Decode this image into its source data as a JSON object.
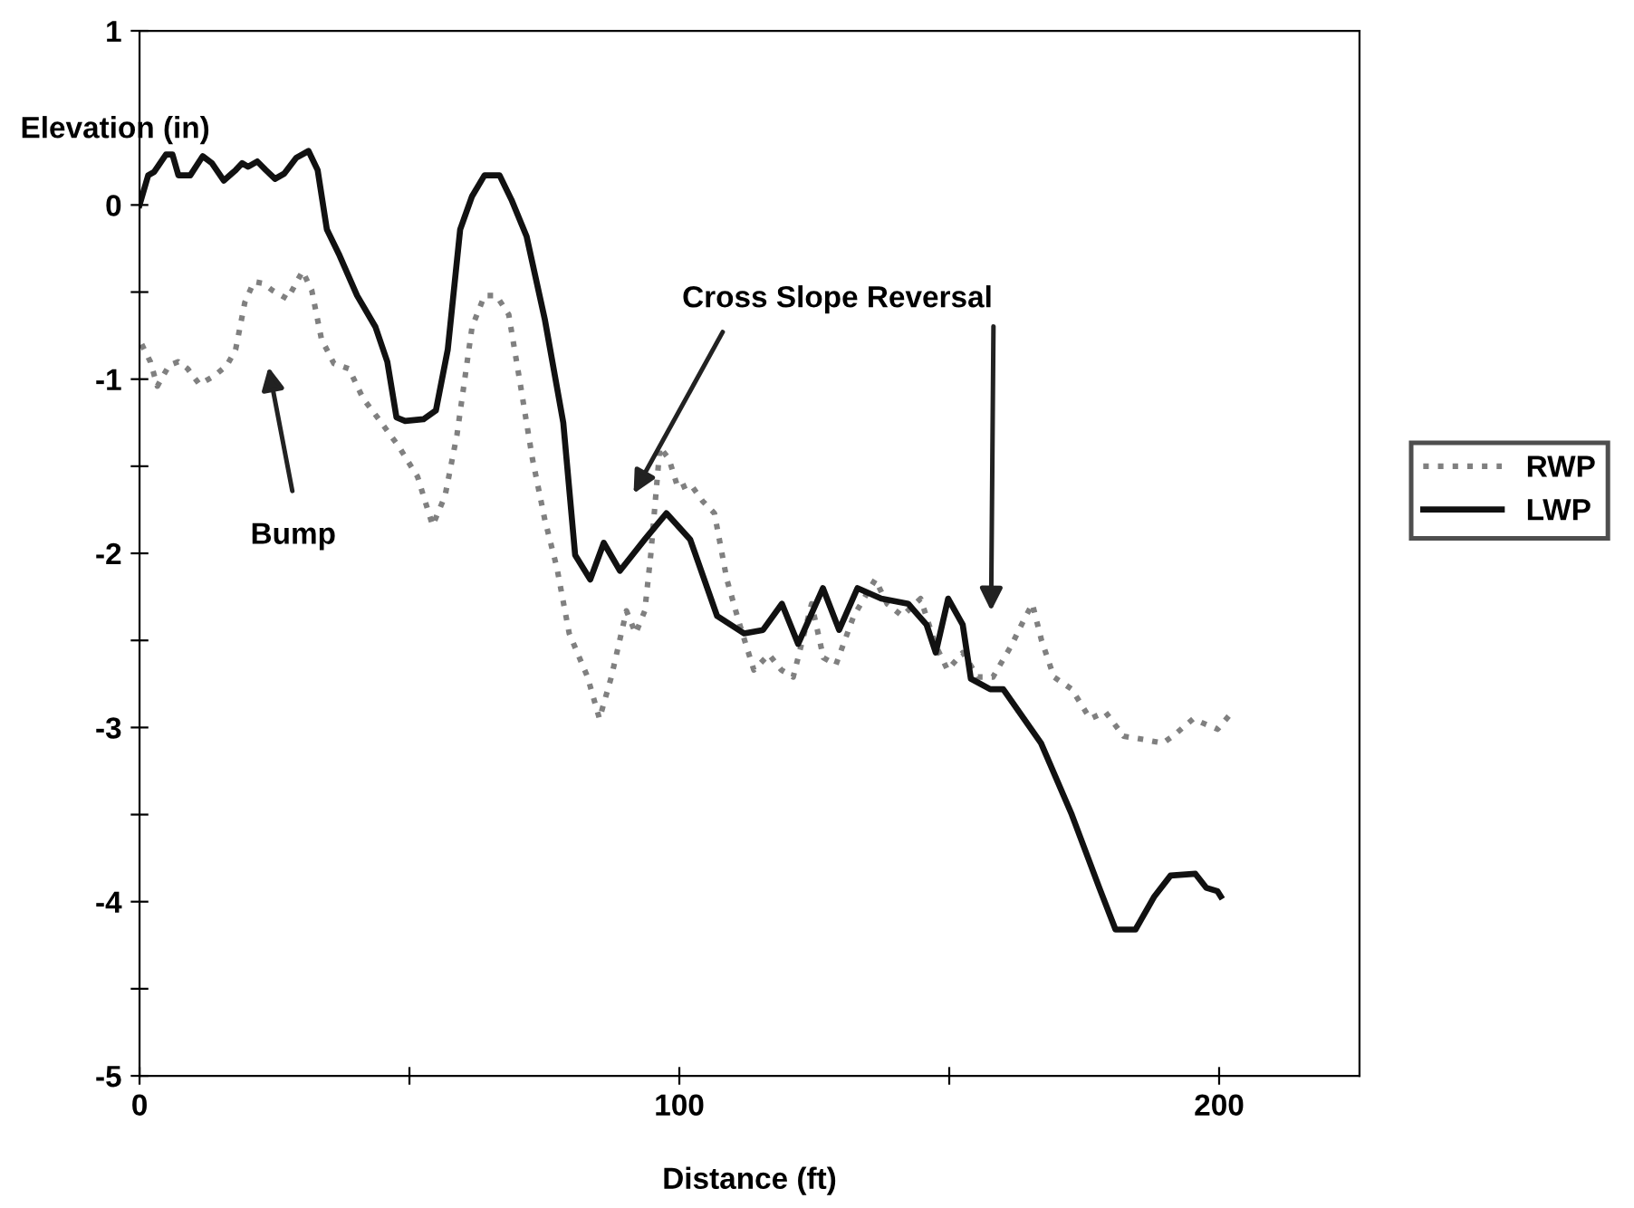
{
  "chart_data": {
    "type": "line",
    "xlabel": "Distance (ft)",
    "ylabel": "Elevation (in)",
    "xlim": [
      0,
      226
    ],
    "ylim": [
      -5,
      1
    ],
    "xticks": [
      0,
      {
        "value": 50,
        "label": null
      },
      100,
      {
        "value": 150,
        "label": null
      },
      200
    ],
    "yticks": [
      -5,
      {
        "value": -4.5,
        "label": null
      },
      -4,
      {
        "value": -3.5,
        "label": null
      },
      -3,
      {
        "value": -2.5,
        "label": null
      },
      -2,
      {
        "value": -1.5,
        "label": null
      },
      -1,
      {
        "value": -0.5,
        "label": null
      },
      0,
      {
        "value": 0.5,
        "label": null
      },
      1
    ],
    "grid": false,
    "legend": "right",
    "marker": "none",
    "series": [
      {
        "name": "RWP",
        "color": "#808080",
        "line_style": "dotted",
        "x": [
          0.4,
          2,
          3.3,
          5.5,
          7.2,
          8.9,
          11.1,
          13.9,
          16.2,
          17.8,
          19.5,
          21.2,
          22.9,
          24.6,
          27.4,
          30.2,
          31.9,
          33.7,
          36,
          38.8,
          41.4,
          44.8,
          48.1,
          51.5,
          54.3,
          56.6,
          58.8,
          61.6,
          63.9,
          66.1,
          68.4,
          70.6,
          72.8,
          75.1,
          77.3,
          79.6,
          83,
          85.2,
          87.4,
          90.2,
          91.9,
          93.6,
          94.7,
          96.4,
          98.1,
          99.8,
          102,
          104.3,
          106.5,
          108.8,
          111,
          113.8,
          116.6,
          118.9,
          121.1,
          124.5,
          126.7,
          129,
          132.3,
          136.3,
          138.5,
          141.3,
          144.7,
          147.5,
          149.7,
          152.5,
          155.3,
          158.1,
          161.5,
          163.7,
          165.4,
          167.1,
          169.4,
          172.7,
          176.1,
          178.9,
          182.3,
          186.2,
          189.6,
          191.8,
          195.2,
          197.4,
          199.7,
          201.9
        ],
        "values": [
          -0.8,
          -0.9,
          -1.04,
          -0.92,
          -0.9,
          -0.94,
          -1.03,
          -0.98,
          -0.92,
          -0.83,
          -0.56,
          -0.44,
          -0.45,
          -0.49,
          -0.54,
          -0.38,
          -0.49,
          -0.77,
          -0.91,
          -0.94,
          -1.11,
          -1.25,
          -1.39,
          -1.56,
          -1.84,
          -1.67,
          -1.32,
          -0.7,
          -0.52,
          -0.52,
          -0.63,
          -1.04,
          -1.46,
          -1.81,
          -2.08,
          -2.46,
          -2.71,
          -2.95,
          -2.71,
          -2.33,
          -2.46,
          -2.33,
          -2.01,
          -1.39,
          -1.46,
          -1.63,
          -1.6,
          -1.7,
          -1.77,
          -2.15,
          -2.39,
          -2.67,
          -2.58,
          -2.67,
          -2.71,
          -2.29,
          -2.6,
          -2.64,
          -2.36,
          -2.15,
          -2.29,
          -2.36,
          -2.26,
          -2.53,
          -2.67,
          -2.57,
          -2.71,
          -2.71,
          -2.53,
          -2.39,
          -2.29,
          -2.5,
          -2.71,
          -2.78,
          -2.95,
          -2.91,
          -3.05,
          -3.07,
          -3.09,
          -3.04,
          -2.95,
          -2.98,
          -3.01,
          -2.93
        ]
      },
      {
        "name": "LWP",
        "color": "#111111",
        "line_style": "solid",
        "x": [
          0,
          1.6,
          2.7,
          4.9,
          6.1,
          7.2,
          9.4,
          11.7,
          13.4,
          15.6,
          17.8,
          19,
          20.1,
          21.8,
          23.4,
          25.1,
          26.8,
          29,
          31.3,
          33,
          34.7,
          36.9,
          40.3,
          43.7,
          45.9,
          47.6,
          49.2,
          52.6,
          54.9,
          57.1,
          59.4,
          61.6,
          63.9,
          66.7,
          68.9,
          71.7,
          75.1,
          78.5,
          80.7,
          83.5,
          86,
          89,
          93.6,
          97.6,
          102,
          107,
          112,
          115.5,
          119,
          122,
          126.6,
          129.6,
          133,
          137.4,
          142.4,
          145.8,
          147.5,
          149.8,
          152.5,
          154,
          157.6,
          160,
          167,
          172.7,
          177.8,
          180.8,
          184.5,
          188,
          191,
          195.6,
          197.6,
          199.7,
          200.3
        ],
        "values": [
          0,
          0.17,
          0.19,
          0.29,
          0.29,
          0.17,
          0.17,
          0.28,
          0.24,
          0.14,
          0.2,
          0.24,
          0.22,
          0.25,
          0.2,
          0.15,
          0.18,
          0.27,
          0.31,
          0.2,
          -0.14,
          -0.28,
          -0.52,
          -0.7,
          -0.9,
          -1.22,
          -1.24,
          -1.23,
          -1.18,
          -0.83,
          -0.14,
          0.05,
          0.17,
          0.17,
          0.03,
          -0.18,
          -0.66,
          -1.25,
          -2.01,
          -2.15,
          -1.94,
          -2.1,
          -1.92,
          -1.77,
          -1.92,
          -2.36,
          -2.46,
          -2.44,
          -2.29,
          -2.52,
          -2.2,
          -2.44,
          -2.2,
          -2.26,
          -2.29,
          -2.41,
          -2.57,
          -2.26,
          -2.41,
          -2.72,
          -2.78,
          -2.78,
          -3.09,
          -3.5,
          -3.92,
          -4.16,
          -4.16,
          -3.97,
          -3.85,
          -3.84,
          -3.92,
          -3.94,
          -3.97
        ]
      }
    ],
    "annotations": [
      "Bump",
      "Cross Slope Reversal"
    ]
  }
}
